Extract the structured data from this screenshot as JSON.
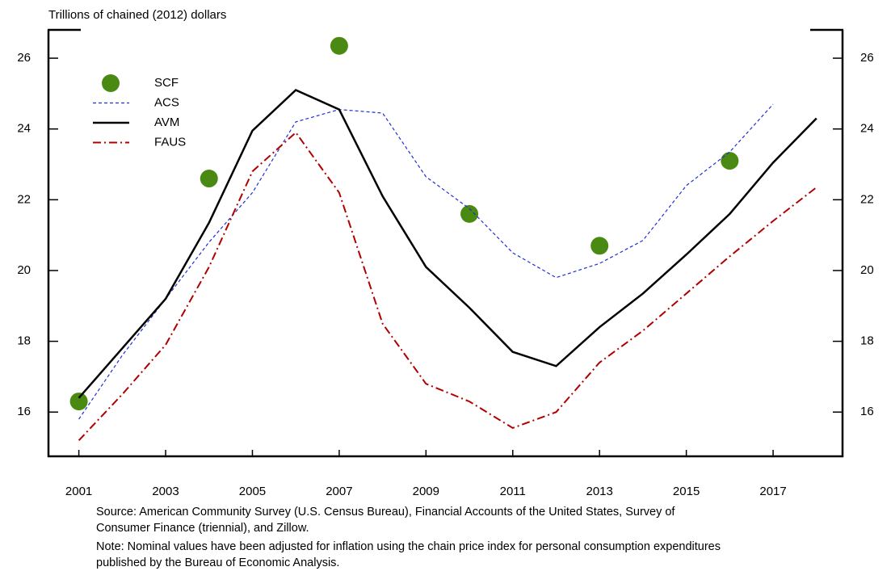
{
  "chart_data": {
    "type": "line",
    "y_axis_label": "Trillions of chained (2012) dollars",
    "xlim": [
      2000.3,
      2018.6
    ],
    "xticks": [
      2001,
      2003,
      2005,
      2007,
      2009,
      2011,
      2013,
      2015,
      2017
    ],
    "ylim": [
      14.75,
      26.8
    ],
    "yticks": [
      16,
      18,
      20,
      22,
      24,
      26
    ],
    "legend": "upper left",
    "series": [
      {
        "name": "SCF",
        "color": "#4a8a12",
        "style": "marker",
        "x": [
          2001,
          2004,
          2007,
          2010,
          2013,
          2016
        ],
        "values": [
          16.3,
          22.6,
          26.35,
          21.6,
          20.7,
          23.1
        ]
      },
      {
        "name": "ACS",
        "color": "#1f2fd6",
        "style": "dashed",
        "x": [
          2001,
          2002,
          2003,
          2004,
          2005,
          2006,
          2007,
          2008,
          2009,
          2010,
          2011,
          2012,
          2013,
          2014,
          2015,
          2016,
          2017
        ],
        "values": [
          15.8,
          17.6,
          19.2,
          20.8,
          22.2,
          24.2,
          24.55,
          24.45,
          22.65,
          21.75,
          20.5,
          19.8,
          20.2,
          20.85,
          22.4,
          23.35,
          24.7
        ]
      },
      {
        "name": "AVM",
        "color": "#000000",
        "style": "solid",
        "x": [
          2001,
          2002,
          2003,
          2004,
          2005,
          2006,
          2007,
          2008,
          2009,
          2010,
          2011,
          2012,
          2013,
          2014,
          2015,
          2016,
          2017,
          2018
        ],
        "values": [
          16.4,
          17.8,
          19.2,
          21.35,
          23.95,
          25.1,
          24.55,
          22.1,
          20.1,
          18.95,
          17.7,
          17.3,
          18.4,
          19.35,
          20.45,
          21.6,
          23.05,
          24.3
        ]
      },
      {
        "name": "FAUS",
        "color": "#b00000",
        "style": "dashdot",
        "x": [
          2001,
          2002,
          2003,
          2004,
          2005,
          2006,
          2007,
          2008,
          2009,
          2010,
          2011,
          2012,
          2013,
          2014,
          2015,
          2016,
          2017,
          2018
        ],
        "values": [
          15.2,
          16.5,
          17.9,
          20.1,
          22.8,
          23.9,
          22.2,
          18.5,
          16.8,
          16.3,
          15.55,
          16.0,
          17.4,
          18.3,
          19.35,
          20.4,
          21.4,
          22.35
        ]
      }
    ],
    "source": [
      "Source: American Community Survey (U.S. Census Bureau), Financial Accounts of the United States, Survey of",
      "Consumer Finance (triennial), and Zillow."
    ],
    "note": [
      "Note: Nominal values have been adjusted for inflation using the chain price index for personal consumption expenditures",
      "published by the Bureau of Economic Analysis."
    ]
  }
}
